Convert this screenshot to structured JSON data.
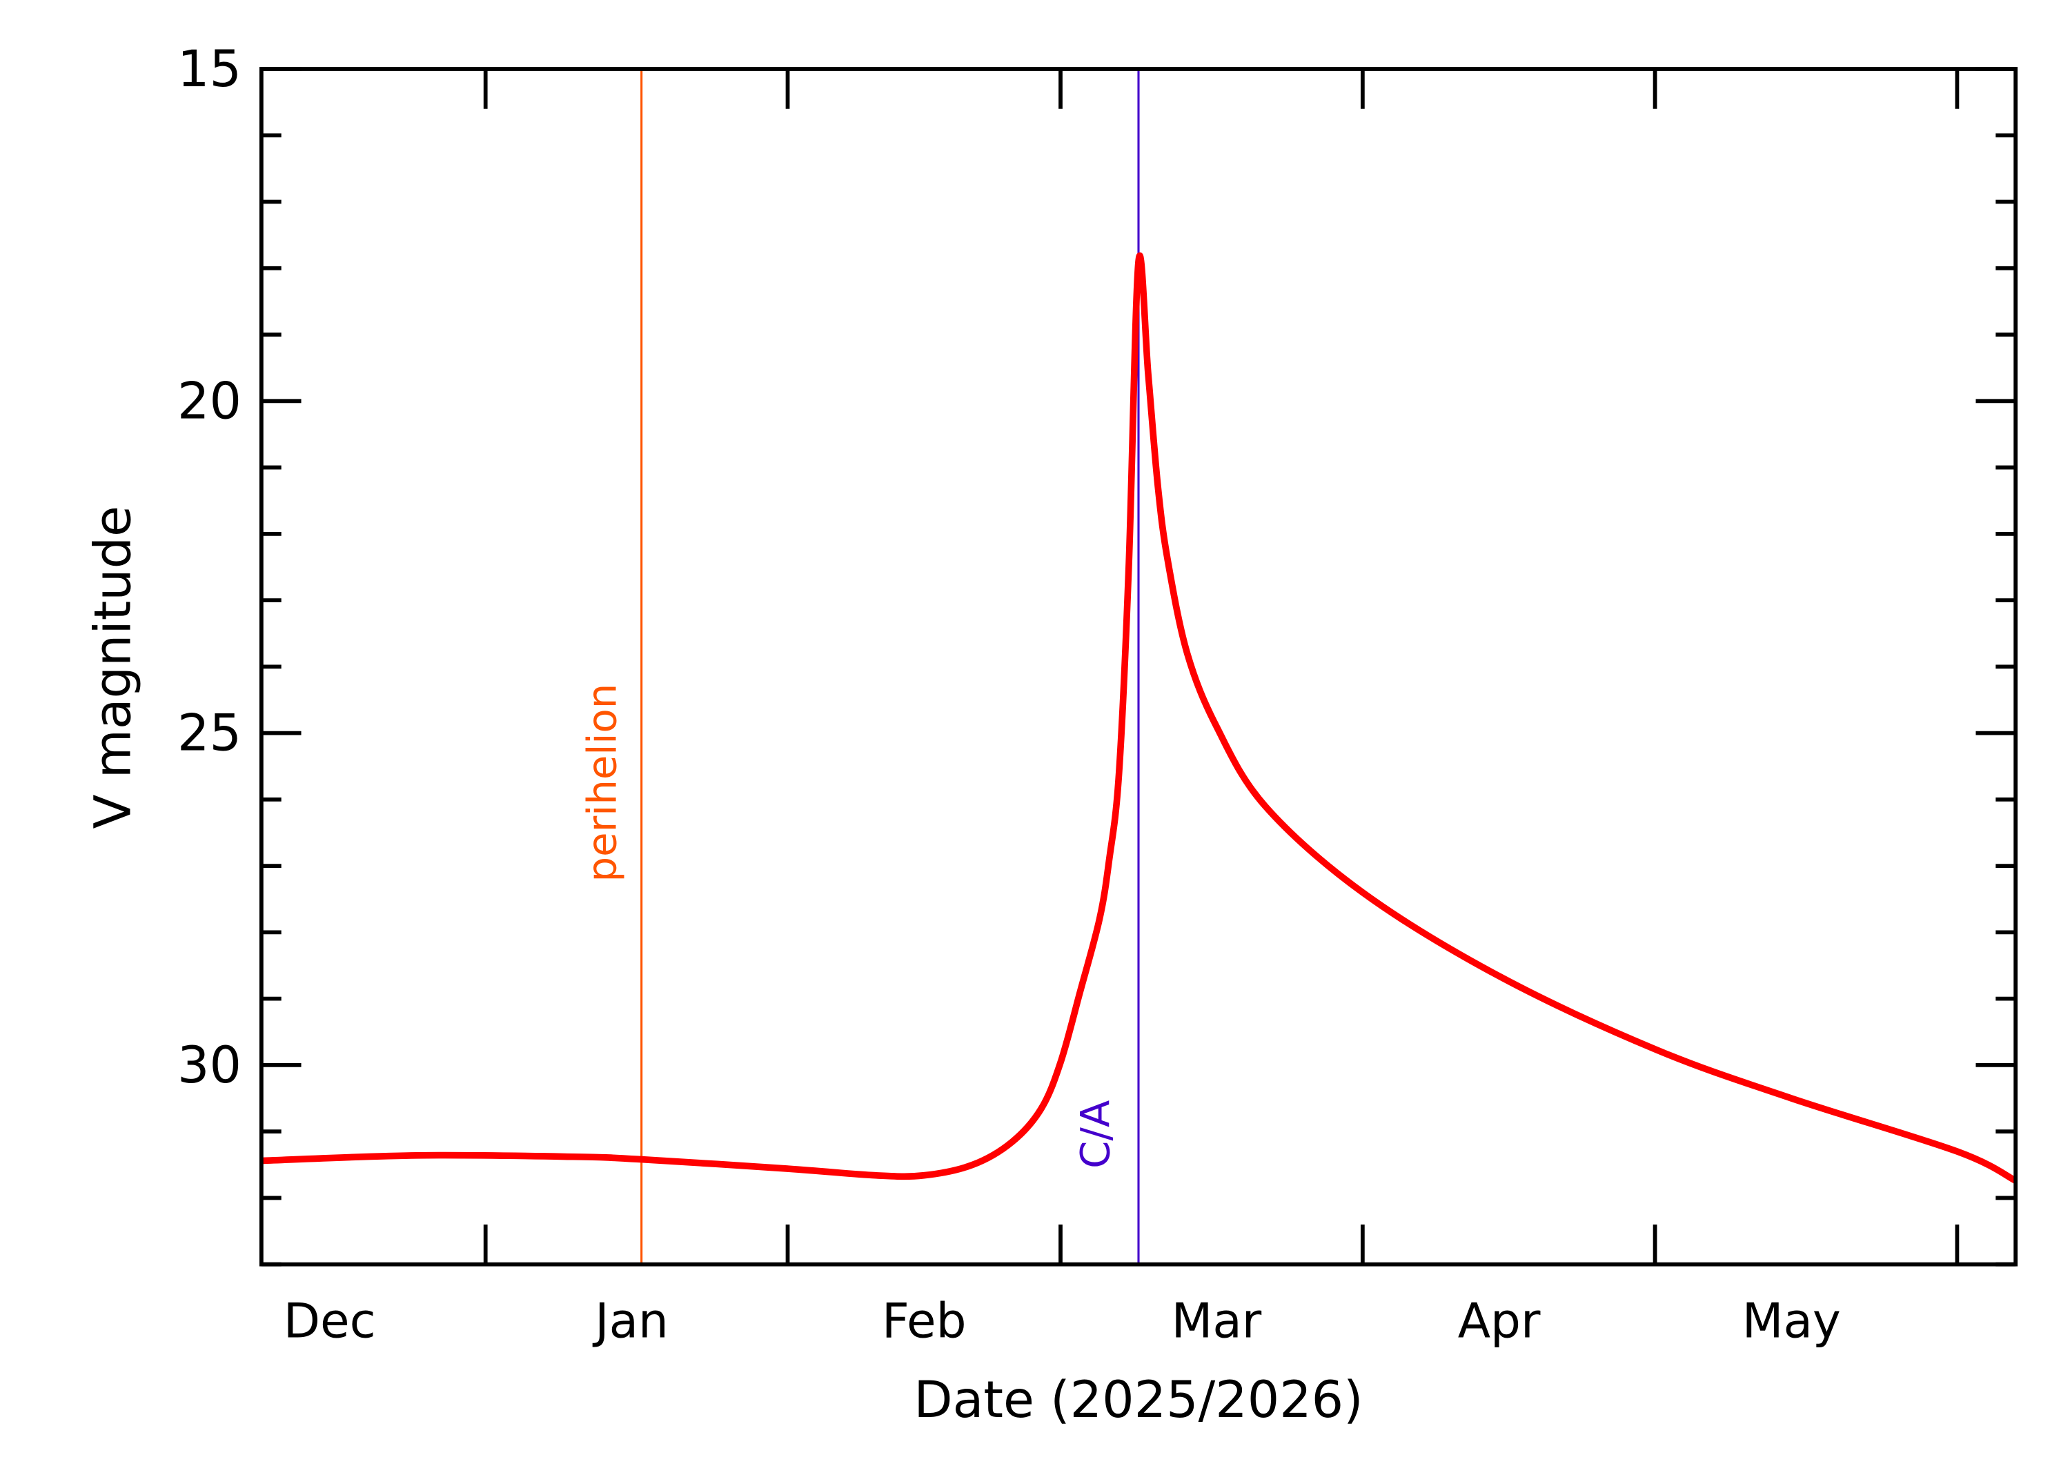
{
  "chart_data": {
    "type": "line",
    "title": "",
    "xlabel": "Date (2025/2026)",
    "ylabel": "V magnitude",
    "xlim": [
      "2025-12-09",
      "2026-06-07"
    ],
    "ylim": [
      33,
      15
    ],
    "y_inverted": true,
    "grid": false,
    "x_tick_dates": [
      "2026-01-01",
      "2026-02-01",
      "2026-03-01",
      "2026-04-01",
      "2026-05-01",
      "2026-06-01"
    ],
    "x_month_labels": [
      {
        "label": "Dec",
        "date": "2025-12-16"
      },
      {
        "label": "Jan",
        "date": "2026-01-16"
      },
      {
        "label": "Feb",
        "date": "2026-02-15"
      },
      {
        "label": "Mar",
        "date": "2026-03-17"
      },
      {
        "label": "Apr",
        "date": "2026-04-15"
      },
      {
        "label": "May",
        "date": "2026-05-15"
      }
    ],
    "y_major_ticks": [
      15,
      20,
      25,
      30
    ],
    "y_minor_step": 1,
    "series": [
      {
        "color": "#ff0000",
        "points": [
          [
            "2025-12-09",
            31.44
          ],
          [
            "2025-12-25",
            31.36
          ],
          [
            "2026-01-10",
            31.38
          ],
          [
            "2026-01-17",
            31.42
          ],
          [
            "2026-02-01",
            31.56
          ],
          [
            "2026-02-10",
            31.66
          ],
          [
            "2026-02-15",
            31.66
          ],
          [
            "2026-02-20",
            31.5
          ],
          [
            "2026-02-24",
            31.16
          ],
          [
            "2026-02-27",
            30.66
          ],
          [
            "2026-03-01",
            29.96
          ],
          [
            "2026-03-03",
            28.9
          ],
          [
            "2026-03-05",
            27.8
          ],
          [
            "2026-03-06",
            26.9
          ],
          [
            "2026-03-07",
            25.6
          ],
          [
            "2026-03-08",
            22.5
          ],
          [
            "2026-03-09",
            17.9
          ],
          [
            "2026-03-10",
            19.6
          ],
          [
            "2026-03-11",
            21.3
          ],
          [
            "2026-03-12",
            22.4
          ],
          [
            "2026-03-14",
            23.8
          ],
          [
            "2026-03-17",
            24.9
          ],
          [
            "2026-03-22",
            26.1
          ],
          [
            "2026-04-01",
            27.4
          ],
          [
            "2026-04-15",
            28.66
          ],
          [
            "2026-05-01",
            29.76
          ],
          [
            "2026-05-15",
            30.5
          ],
          [
            "2026-06-01",
            31.3
          ],
          [
            "2026-06-07",
            31.74
          ]
        ]
      }
    ],
    "markers": [
      {
        "label": "perihelion",
        "date": "2026-01-17",
        "color": "#ff5500"
      },
      {
        "label": "C/A",
        "date": "2026-03-09",
        "color": "#4400cc"
      }
    ]
  }
}
